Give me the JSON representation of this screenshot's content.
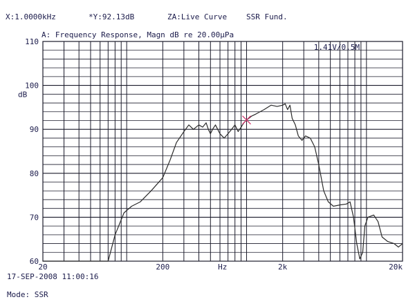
{
  "header": {
    "x_readout": "X:1.0000kHz",
    "y_readout": "*Y:92.13dB",
    "curve_mode": "ZA:Live Curve",
    "source": "SSR Fund."
  },
  "footer": {
    "datetime": "17-SEP-2008 11:00:16",
    "mode": "Mode: SSR"
  },
  "chart_data": {
    "type": "line",
    "title": "A: Frequency Response, Magn dB re 20.00µPa",
    "annotation": "1.41V/0.5M",
    "xlabel": "Hz",
    "ylabel": "dB",
    "xscale": "log",
    "xlim": [
      20,
      20000
    ],
    "ylim": [
      60,
      110
    ],
    "x_tick_labels": [
      {
        "value": 20,
        "label": "20"
      },
      {
        "value": 200,
        "label": "200"
      },
      {
        "value": 2000,
        "label": "2k"
      },
      {
        "value": 20000,
        "label": "20k"
      }
    ],
    "y_tick_labels": [
      60,
      70,
      80,
      90,
      100,
      110
    ],
    "grid": true,
    "marker": {
      "x": 1000,
      "y": 92.13
    },
    "colors": {
      "curve": "#2a2a2a",
      "grid": "#1a1a2a",
      "marker": "#d0306a",
      "annotation": "#1a8a4a",
      "text": "#1a1a4a"
    },
    "series": [
      {
        "points": [
          [
            20,
            60
          ],
          [
            70,
            60
          ],
          [
            80,
            66
          ],
          [
            95,
            71
          ],
          [
            110,
            72.5
          ],
          [
            130,
            73.5
          ],
          [
            160,
            76
          ],
          [
            200,
            79
          ],
          [
            230,
            83
          ],
          [
            260,
            87
          ],
          [
            300,
            89.5
          ],
          [
            330,
            91
          ],
          [
            360,
            90
          ],
          [
            400,
            91
          ],
          [
            430,
            90.5
          ],
          [
            460,
            91.5
          ],
          [
            480,
            90
          ],
          [
            500,
            89
          ],
          [
            520,
            90
          ],
          [
            550,
            91
          ],
          [
            600,
            89
          ],
          [
            650,
            88
          ],
          [
            700,
            89
          ],
          [
            750,
            90
          ],
          [
            800,
            91
          ],
          [
            850,
            89.5
          ],
          [
            900,
            90.5
          ],
          [
            950,
            91.5
          ],
          [
            1000,
            92.1
          ],
          [
            1100,
            93
          ],
          [
            1200,
            93.5
          ],
          [
            1400,
            94.5
          ],
          [
            1600,
            95.5
          ],
          [
            1800,
            95.2
          ],
          [
            2000,
            95.5
          ],
          [
            2100,
            95.8
          ],
          [
            2200,
            94.5
          ],
          [
            2300,
            95.5
          ],
          [
            2400,
            92.5
          ],
          [
            2550,
            91
          ],
          [
            2700,
            88.5
          ],
          [
            2900,
            87.5
          ],
          [
            3100,
            88.5
          ],
          [
            3400,
            88
          ],
          [
            3700,
            86
          ],
          [
            4000,
            82
          ],
          [
            4400,
            76
          ],
          [
            4800,
            73.5
          ],
          [
            5300,
            72.5
          ],
          [
            6000,
            72.8
          ],
          [
            6800,
            73
          ],
          [
            7300,
            73.5
          ],
          [
            7800,
            70
          ],
          [
            8300,
            64
          ],
          [
            8800,
            60.5
          ],
          [
            9300,
            62
          ],
          [
            9700,
            68
          ],
          [
            10300,
            70
          ],
          [
            11500,
            70.5
          ],
          [
            12500,
            69
          ],
          [
            13500,
            65.5
          ],
          [
            15000,
            64.5
          ],
          [
            17000,
            64
          ],
          [
            18500,
            63.2
          ],
          [
            20000,
            64
          ]
        ]
      }
    ]
  }
}
